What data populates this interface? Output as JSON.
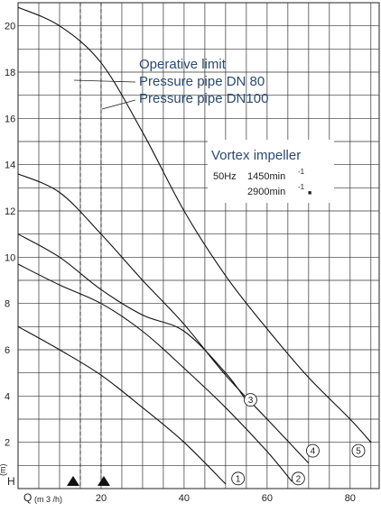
{
  "chart_data": {
    "type": "line",
    "title": "",
    "xlabel": "Q",
    "xlabel_unit": "(m 3 /h)",
    "ylabel": "H",
    "ylabel_unit": "(m)",
    "xlim": [
      0,
      87
    ],
    "ylim": [
      0,
      21
    ],
    "x_ticks": [
      20,
      40,
      60,
      80
    ],
    "y_ticks": [
      2,
      4,
      6,
      8,
      10,
      12,
      14,
      16,
      18,
      20
    ],
    "grid": true,
    "legend": "none",
    "annotations": {
      "limit_title": "Operative limit",
      "limit_dn80": "Pressure pipe DN  80",
      "limit_dn100": "Pressure pipe DN100",
      "impeller": "Vortex impeller",
      "freq": "50Hz",
      "speed_low": "1450min",
      "speed_high": "2900min",
      "speed_exp": "-1",
      "speed_high_mark": "■"
    },
    "markers_at_x": [
      15,
      20
    ],
    "limit_lines_x": [
      15,
      20
    ],
    "series": [
      {
        "name": "1",
        "x": [
          0,
          10,
          20,
          30,
          40,
          50
        ],
        "y": [
          7.0,
          6.0,
          4.9,
          3.5,
          2.0,
          0.2
        ]
      },
      {
        "name": "2",
        "x": [
          0,
          10,
          20,
          30,
          40,
          50,
          60,
          66
        ],
        "y": [
          9.7,
          8.8,
          8.0,
          6.8,
          5.2,
          3.5,
          1.6,
          0.3
        ]
      },
      {
        "name": "3",
        "x": [
          0,
          10,
          20,
          30,
          40,
          50,
          55
        ],
        "y": [
          11.0,
          10.0,
          8.6,
          7.5,
          6.8,
          5.0,
          3.8
        ]
      },
      {
        "name": "4",
        "x": [
          0,
          10,
          20,
          30,
          40,
          50,
          60,
          70
        ],
        "y": [
          13.6,
          12.8,
          11.0,
          9.0,
          7.1,
          4.9,
          3.0,
          1.1
        ]
      },
      {
        "name": "5",
        "x": [
          0,
          10,
          20,
          30,
          40,
          50,
          60,
          70,
          80,
          85
        ],
        "y": [
          20.8,
          20.0,
          18.4,
          15.4,
          12.0,
          9.2,
          6.9,
          4.8,
          3.0,
          2.0
        ]
      }
    ],
    "curve_label_positions": [
      {
        "name": "1",
        "x": 53,
        "y": 0.2
      },
      {
        "name": "2",
        "x": 67.5,
        "y": 0.2
      },
      {
        "name": "3",
        "x": 56,
        "y": 3.6
      },
      {
        "name": "4",
        "x": 71,
        "y": 1.4
      },
      {
        "name": "5",
        "x": 82,
        "y": 1.4
      }
    ],
    "curve_label_texts": [
      "1",
      "2",
      "3",
      "4",
      "5"
    ]
  }
}
